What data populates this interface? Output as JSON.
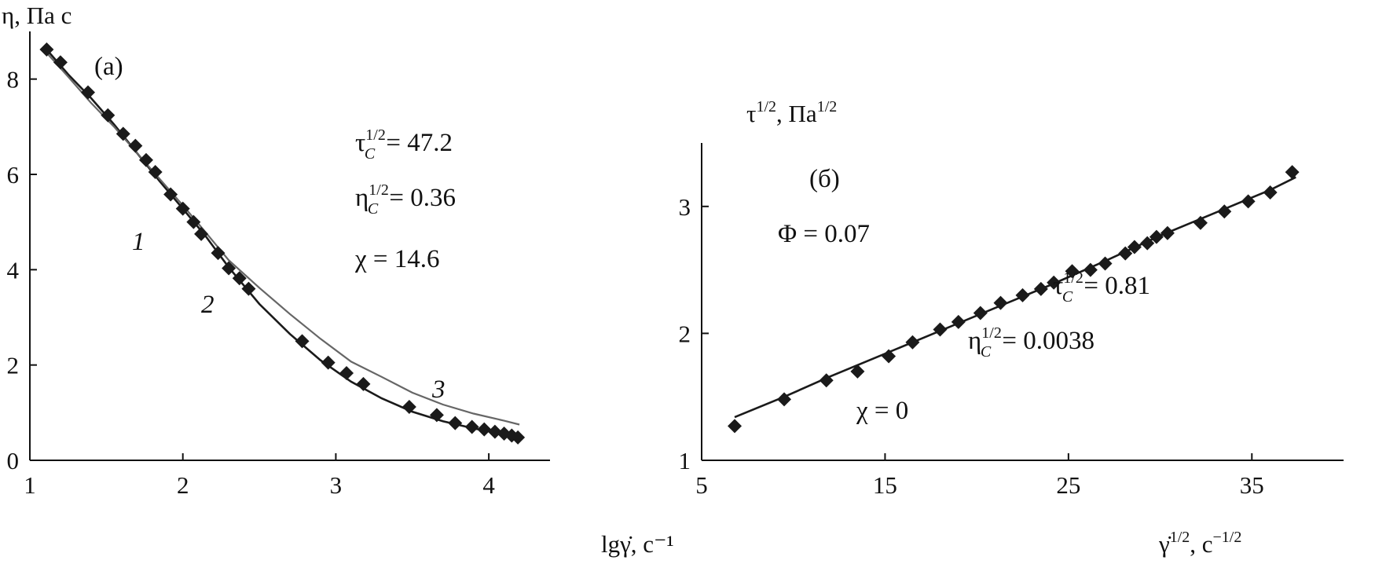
{
  "colors": {
    "axis": "#111111",
    "points": "#1a1a1a",
    "curve_dark": "#1a1a1a",
    "curve_gray": "#666666"
  },
  "chart_data": [
    {
      "id": "a",
      "type": "line",
      "panel_label": "(a)",
      "ylabel": "η, Па с",
      "xlabel": "lgγ̇, с⁻¹",
      "xlim": [
        1,
        4.4
      ],
      "ylim": [
        0,
        9
      ],
      "xticks": [
        1,
        2,
        3,
        4
      ],
      "yticks": [
        0,
        2,
        4,
        6,
        8
      ],
      "params": [
        {
          "sym": "τ",
          "sup": "1/2",
          "sub": "C",
          "text": " = 47.2"
        },
        {
          "sym": "η",
          "sup": "1/2",
          "sub": "C",
          "text": " = 0.36"
        },
        {
          "sym": "χ",
          "text": " = 14.6"
        }
      ],
      "curve_labels": [
        "1",
        "2",
        "3"
      ],
      "series": [
        {
          "type": "scatter",
          "marker": "diamond",
          "x": [
            1.11,
            1.2,
            1.38,
            1.51,
            1.61,
            1.69,
            1.76,
            1.82,
            1.92,
            2.0,
            2.07,
            2.12,
            2.23,
            2.3,
            2.37,
            2.43,
            2.78,
            2.95,
            3.07,
            3.18,
            3.48,
            3.66,
            3.78,
            3.89,
            3.97,
            4.04,
            4.1,
            4.15,
            4.19
          ],
          "y": [
            8.62,
            8.35,
            7.72,
            7.24,
            6.85,
            6.6,
            6.3,
            6.05,
            5.58,
            5.28,
            5.0,
            4.75,
            4.35,
            4.03,
            3.82,
            3.6,
            2.5,
            2.05,
            1.83,
            1.6,
            1.12,
            0.95,
            0.78,
            0.7,
            0.65,
            0.6,
            0.56,
            0.52,
            0.48
          ]
        },
        {
          "type": "line",
          "style": "dark",
          "x": [
            1.11,
            1.25,
            1.4,
            1.55,
            1.7,
            1.85,
            2.0,
            2.15,
            2.3,
            2.5,
            2.7,
            2.9,
            3.1,
            3.3,
            3.5,
            3.7,
            3.9,
            4.1,
            4.2
          ],
          "y": [
            8.62,
            8.1,
            7.6,
            7.05,
            6.45,
            5.85,
            5.28,
            4.7,
            4.05,
            3.28,
            2.65,
            2.1,
            1.65,
            1.3,
            1.02,
            0.82,
            0.67,
            0.55,
            0.48
          ]
        },
        {
          "type": "line",
          "style": "gray",
          "x": [
            1.11,
            1.25,
            1.4,
            1.55,
            1.7,
            1.85,
            2.0,
            2.15,
            2.3,
            2.5,
            2.7,
            2.9,
            3.1,
            3.3,
            3.5,
            3.7,
            3.9,
            4.1,
            4.2
          ],
          "y": [
            8.55,
            8.05,
            7.5,
            7.0,
            6.45,
            5.9,
            5.35,
            4.78,
            4.2,
            3.62,
            3.07,
            2.55,
            2.07,
            1.75,
            1.42,
            1.17,
            0.98,
            0.83,
            0.75
          ]
        }
      ]
    },
    {
      "id": "b",
      "type": "line",
      "panel_label": "(б)",
      "ylabel": "τ½, Па½",
      "xlabel": "γ̇½, с⁻½",
      "xlim": [
        5,
        40
      ],
      "ylim": [
        1,
        3.5
      ],
      "xticks": [
        5,
        15,
        25,
        35
      ],
      "yticks": [
        1,
        2,
        3
      ],
      "params": [
        {
          "sym": "Φ",
          "text": " = 0.07"
        },
        {
          "sym": "τ",
          "sup": "1/2",
          "sub": "C",
          "text": " = 0.81"
        },
        {
          "sym": "η",
          "sup": "1/2",
          "sub": "C",
          "text": " = 0.0038"
        },
        {
          "sym": "χ",
          "text": " = 0"
        }
      ],
      "series": [
        {
          "type": "scatter",
          "marker": "diamond",
          "x": [
            6.8,
            9.5,
            11.8,
            13.5,
            15.2,
            16.5,
            18.0,
            19.0,
            20.2,
            21.3,
            22.5,
            23.5,
            24.2,
            25.2,
            26.2,
            27.0,
            28.1,
            28.6,
            29.3,
            29.8,
            30.4,
            32.2,
            33.5,
            34.8,
            36.0,
            37.2
          ],
          "y": [
            1.27,
            1.48,
            1.63,
            1.7,
            1.82,
            1.93,
            2.03,
            2.09,
            2.16,
            2.24,
            2.3,
            2.35,
            2.4,
            2.49,
            2.5,
            2.55,
            2.63,
            2.68,
            2.71,
            2.76,
            2.79,
            2.87,
            2.96,
            3.04,
            3.11,
            3.27
          ]
        },
        {
          "type": "line",
          "style": "dark",
          "x": [
            6.8,
            9.5,
            12.0,
            15.0,
            18.0,
            21.0,
            24.0,
            27.0,
            30.0,
            33.0,
            36.0,
            37.4
          ],
          "y": [
            1.34,
            1.5,
            1.66,
            1.84,
            2.02,
            2.2,
            2.38,
            2.57,
            2.77,
            2.95,
            3.13,
            3.23
          ]
        }
      ]
    }
  ]
}
